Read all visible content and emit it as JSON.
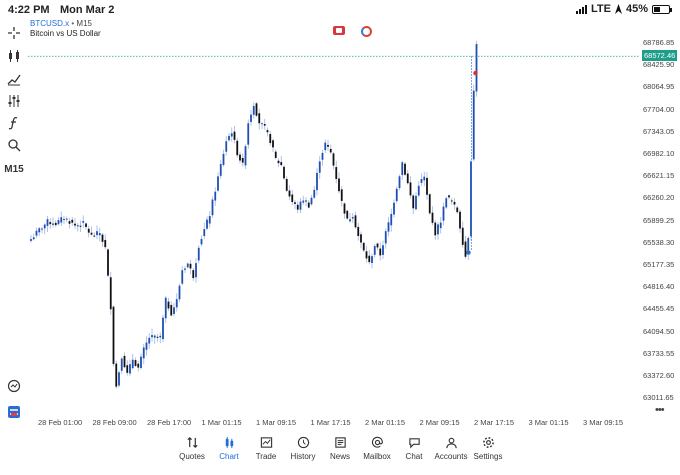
{
  "status_bar": {
    "time": "4:22 PM",
    "date": "Mon Mar 2",
    "network": "LTE",
    "battery": "45%"
  },
  "chart_header": {
    "symbol": "BTCUSD.x",
    "timeframe": "M15",
    "description": "Bitcoin vs US Dollar"
  },
  "toolbar": {
    "items": [
      "crosshair-icon",
      "candle-type-icon",
      "indicators-icon",
      "settings-sliders-icon",
      "function-icon",
      "objects-icon"
    ],
    "timeframe_label": "M15",
    "bottom_items": [
      "clock-icon",
      "trade-icon"
    ]
  },
  "price_axis": {
    "labels": [
      "68786.85",
      "68425.90",
      "68064.95",
      "67704.00",
      "67343.05",
      "66982.10",
      "66621.15",
      "66260.20",
      "65899.25",
      "65538.30",
      "65177.35",
      "64816.40",
      "64455.45",
      "64094.50",
      "63733.55",
      "63372.60",
      "63011.65"
    ],
    "current_price": "68572.46"
  },
  "time_axis": {
    "labels": [
      "28 Feb 01:00",
      "28 Feb 09:00",
      "28 Feb 17:00",
      "1 Mar 01:15",
      "1 Mar 09:15",
      "1 Mar 17:15",
      "2 Mar 01:15",
      "2 Mar 09:15",
      "2 Mar 17:15",
      "3 Mar 01:15",
      "3 Mar 09:15"
    ]
  },
  "colors": {
    "bull": "#1f4fb5",
    "bear": "#111111",
    "wick": "#9fb4e0",
    "current_line": "#1e9e8a",
    "active_tab": "#1e6fd9"
  },
  "chart_data": {
    "type": "candlestick",
    "symbol": "BTCUSD.x",
    "timeframe": "M15",
    "ylim": [
      62900,
      69000
    ],
    "current_price": 68572.46,
    "close_path": [
      [
        0,
        65600
      ],
      [
        3,
        65750
      ],
      [
        6,
        65880
      ],
      [
        9,
        65850
      ],
      [
        12,
        65950
      ],
      [
        16,
        65820
      ],
      [
        19,
        65850
      ],
      [
        22,
        65650
      ],
      [
        25,
        65700
      ],
      [
        27,
        65450
      ],
      [
        29,
        64500
      ],
      [
        30,
        63600
      ],
      [
        31,
        63200
      ],
      [
        33,
        63700
      ],
      [
        35,
        63400
      ],
      [
        37,
        63650
      ],
      [
        39,
        63500
      ],
      [
        41,
        63800
      ],
      [
        43,
        64000
      ],
      [
        45,
        64000
      ],
      [
        47,
        64000
      ],
      [
        49,
        64600
      ],
      [
        51,
        64400
      ],
      [
        53,
        64600
      ],
      [
        55,
        65100
      ],
      [
        57,
        65200
      ],
      [
        59,
        65000
      ],
      [
        61,
        65500
      ],
      [
        63,
        65750
      ],
      [
        65,
        66000
      ],
      [
        67,
        66400
      ],
      [
        69,
        66800
      ],
      [
        71,
        67200
      ],
      [
        73,
        67350
      ],
      [
        75,
        67000
      ],
      [
        77,
        66800
      ],
      [
        79,
        67500
      ],
      [
        81,
        67800
      ],
      [
        83,
        67500
      ],
      [
        85,
        67400
      ],
      [
        87,
        67200
      ],
      [
        89,
        66900
      ],
      [
        91,
        66800
      ],
      [
        93,
        66400
      ],
      [
        95,
        66200
      ],
      [
        97,
        66100
      ],
      [
        99,
        66250
      ],
      [
        101,
        66150
      ],
      [
        103,
        66400
      ],
      [
        105,
        66900
      ],
      [
        107,
        67150
      ],
      [
        109,
        67000
      ],
      [
        111,
        66600
      ],
      [
        113,
        66200
      ],
      [
        115,
        65900
      ],
      [
        117,
        66000
      ],
      [
        119,
        65650
      ],
      [
        121,
        65400
      ],
      [
        123,
        65200
      ],
      [
        125,
        65500
      ],
      [
        127,
        65350
      ],
      [
        129,
        65700
      ],
      [
        131,
        66000
      ],
      [
        133,
        66450
      ],
      [
        135,
        66850
      ],
      [
        137,
        66500
      ],
      [
        139,
        66100
      ],
      [
        141,
        66500
      ],
      [
        143,
        66600
      ],
      [
        145,
        66000
      ],
      [
        147,
        65700
      ],
      [
        149,
        65900
      ],
      [
        151,
        66300
      ],
      [
        153,
        66200
      ],
      [
        155,
        66050
      ],
      [
        157,
        65550
      ],
      [
        158,
        65320
      ],
      [
        159,
        65650
      ],
      [
        160,
        66900
      ],
      [
        161,
        68000
      ],
      [
        162,
        68800
      ]
    ]
  },
  "tabs": [
    {
      "label": "Quotes",
      "icon": "quotes-icon",
      "active": false
    },
    {
      "label": "Chart",
      "icon": "chart-icon",
      "active": true
    },
    {
      "label": "Trade",
      "icon": "trade-icon",
      "active": false
    },
    {
      "label": "History",
      "icon": "history-icon",
      "active": false
    },
    {
      "label": "News",
      "icon": "news-icon",
      "active": false
    },
    {
      "label": "Mailbox",
      "icon": "mailbox-icon",
      "active": false
    },
    {
      "label": "Chat",
      "icon": "chat-icon",
      "active": false
    },
    {
      "label": "Accounts",
      "icon": "accounts-icon",
      "active": false
    },
    {
      "label": "Settings",
      "icon": "settings-icon",
      "active": false
    }
  ]
}
